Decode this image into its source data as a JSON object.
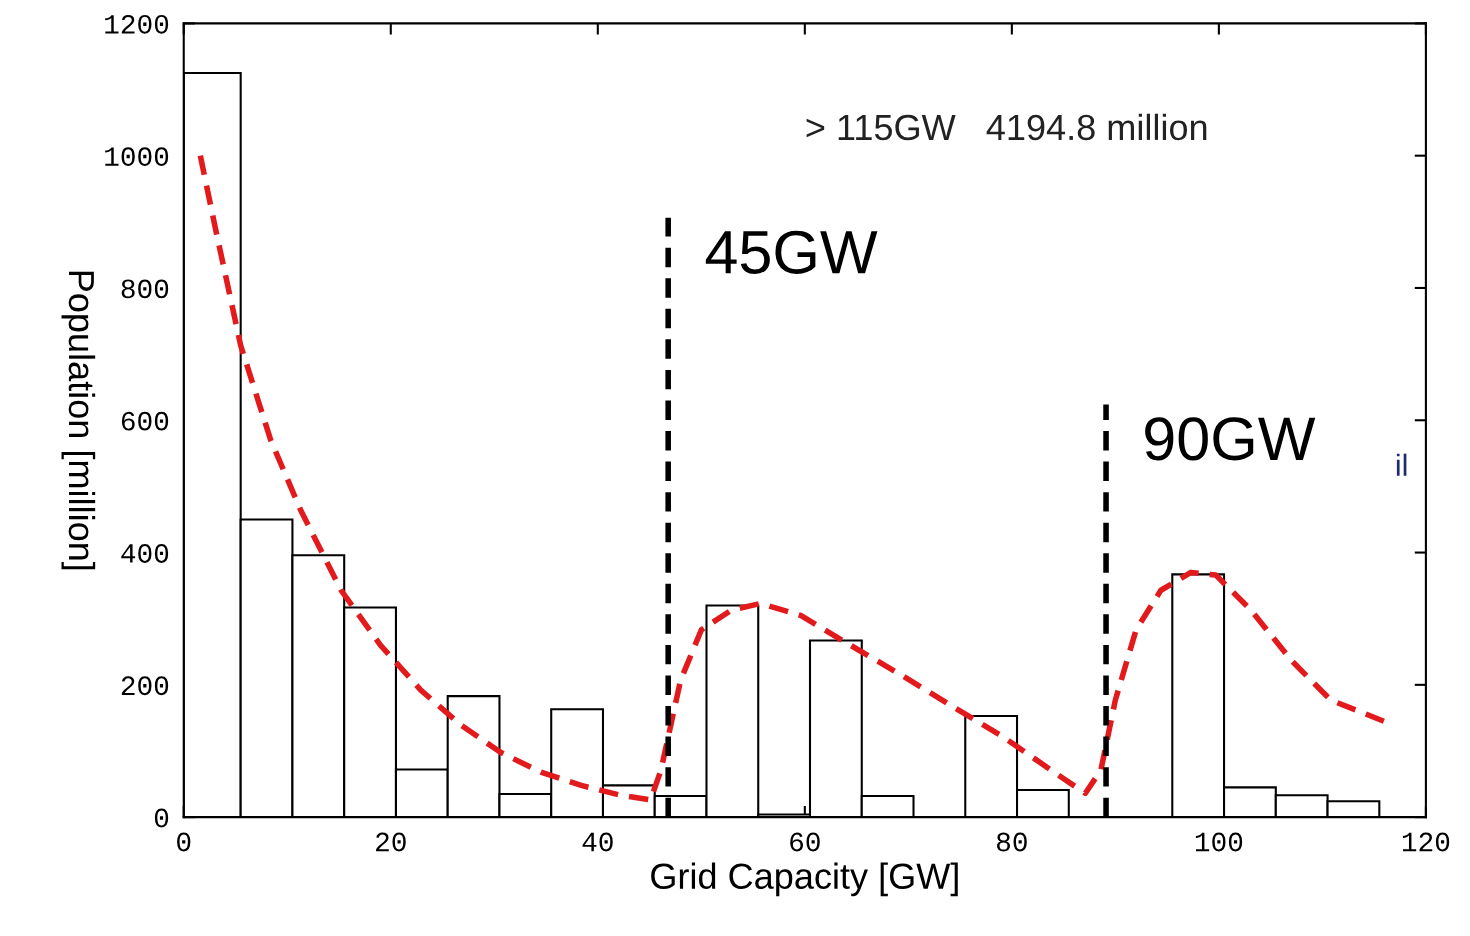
{
  "chart_data": {
    "type": "histogram",
    "xlabel": "Grid Capacity [GW]",
    "ylabel": "Population [million]",
    "bins": [
      0,
      5.5,
      10.5,
      15.5,
      20.5,
      25.5,
      30.5,
      35.5,
      40.5,
      45.5,
      50.5,
      55.5,
      60.5,
      65.5,
      70.5,
      75.5,
      80.5,
      85.5,
      95.5,
      100.5,
      105.5,
      110.5,
      115.5
    ],
    "values": [
      1125,
      450,
      396,
      317,
      72,
      183,
      35,
      163,
      48,
      32,
      320,
      4,
      267,
      32,
      0,
      153,
      41,
      0,
      367,
      45,
      33,
      24
    ],
    "color": "#ffffff",
    "series": [
      {
        "type": "line",
        "color": "#e31a1c",
        "line_style": "dashed",
        "x": [
          1.6,
          3.1,
          5.5,
          8.4,
          11.3,
          15.2,
          19,
          22.9,
          26.8,
          30.6,
          34.5,
          38.4,
          42.2,
          45.1,
          46.1,
          48,
          50,
          52.9,
          55.7,
          59.6,
          64.4,
          69.3,
          74.1,
          78.9,
          83.8,
          87.1,
          88.6,
          90,
          92,
          94.4,
          97.3,
          99.7,
          103.1,
          107,
          110.8,
          116.1
        ],
        "values": [
          1000,
          887,
          713,
          570,
          464,
          343,
          260,
          192,
          139,
          98,
          68,
          48,
          33,
          26,
          71,
          207,
          283,
          313,
          323,
          305,
          260,
          215,
          169,
          124,
          71,
          36,
          71,
          177,
          283,
          343,
          370,
          366,
          313,
          237,
          177,
          144
        ]
      }
    ],
    "ref_lines": [
      {
        "axis": "x",
        "value": 46.8,
        "label": "45GW",
        "color": "#000000",
        "line_style": "dashed"
      },
      {
        "axis": "x",
        "value": 89.1,
        "label": "90GW",
        "color": "#000000",
        "line_style": "dashed"
      }
    ],
    "annotations": [
      "> 115GW   4194.8 million",
      "il"
    ],
    "xlim": [
      0,
      120
    ],
    "xticks": [
      0,
      20,
      40,
      60,
      80,
      100,
      120
    ],
    "ylim": [
      0,
      1200
    ],
    "yticks": [
      0,
      200,
      400,
      600,
      800,
      1000,
      1200
    ],
    "grid": false,
    "legend": false
  }
}
